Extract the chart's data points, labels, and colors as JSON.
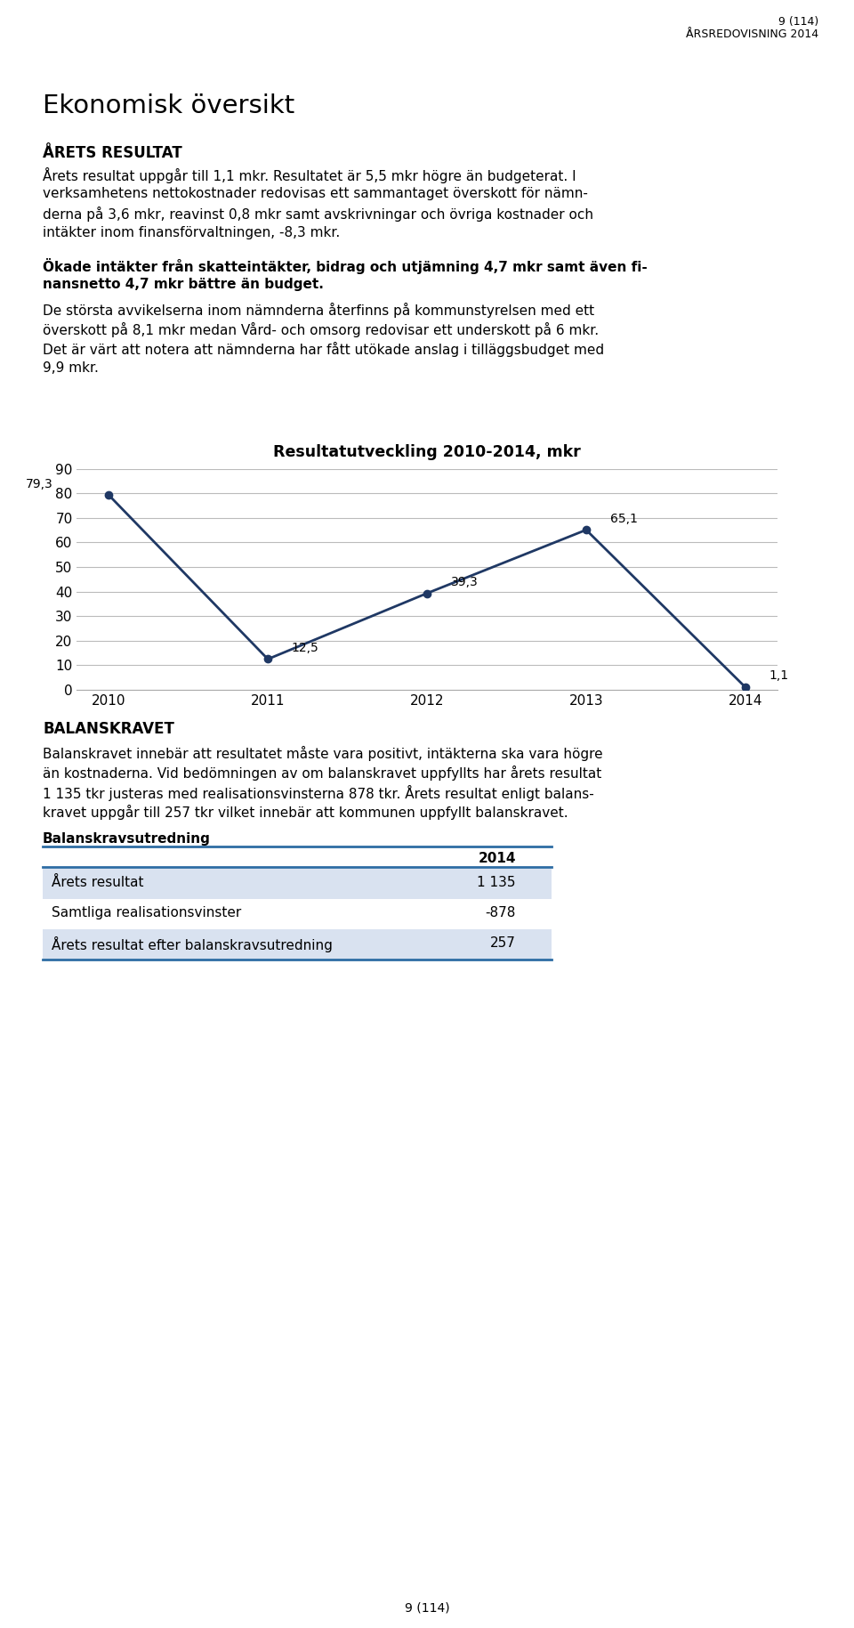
{
  "page_header_line1": "9 (114)",
  "page_header_line2": "ÅRSREDOVISNING 2014",
  "section_title": "Ekonomisk översikt",
  "subsection1_title": "ÅRETS RESULTAT",
  "para1_lines": [
    "Årets resultat uppgår till 1,1 mkr. Resultatet är 5,5 mkr högre än budgeterat. I",
    "verksamhetens nettokostnader redovisas ett sammantaget överskott för nämn-",
    "derna på 3,6 mkr, reavinst 0,8 mkr samt avskrivningar och övriga kostnader och",
    "intäkter inom finansförvaltningen, -8,3 mkr."
  ],
  "para2_lines": [
    "Ökade intäkter från skatteintäkter, bidrag och utjämning 4,7 mkr samt även fi-",
    "nansnetto 4,7 mkr bättre än budget."
  ],
  "para3_lines": [
    "De största avvikelserna inom nämnderna återfinns på kommunstyrelsen med ett",
    "överskott på 8,1 mkr medan Vård- och omsorg redovisar ett underskott på 6 mkr.",
    "Det är värt att notera att nämnderna har fått utökade anslag i tilläggsbudget med",
    "9,9 mkr."
  ],
  "chart_title": "Resultatutveckling 2010-2014, mkr",
  "chart_years": [
    2010,
    2011,
    2012,
    2013,
    2014
  ],
  "chart_values": [
    79.3,
    12.5,
    39.3,
    65.1,
    1.1
  ],
  "chart_ylim": [
    0,
    90
  ],
  "chart_yticks": [
    0,
    10,
    20,
    30,
    40,
    50,
    60,
    70,
    80,
    90
  ],
  "chart_line_color": "#1F3864",
  "chart_marker_color": "#1F3864",
  "chart_grid_color": "#BBBBBB",
  "data_labels": [
    "79,3",
    "12,5",
    "39,3",
    "65,1",
    "1,1"
  ],
  "subsection2_title": "BALANSKRAVET",
  "para4_lines": [
    "Balanskravet innebär att resultatet måste vara positivt, intäkterna ska vara högre",
    "än kostnaderna. Vid bedömningen av om balanskravet uppfyllts har årets resultat",
    "1 135 tkr justeras med realisationsvinsterna 878 tkr. Årets resultat enligt balans-",
    "kravet uppgår till 257 tkr vilket innebär att kommunen uppfyllt balanskravet."
  ],
  "table_title": "Balanskravsutredning",
  "table_header": "2014",
  "table_rows": [
    [
      "Årets resultat",
      "1 135"
    ],
    [
      "Samtliga realisationsvinster",
      "-878"
    ],
    [
      "Årets resultat efter balanskravsutredning",
      "257"
    ]
  ],
  "table_line_color": "#2E6DA4",
  "table_row_bg_colors": [
    "#D9E2F0",
    "#FFFFFF",
    "#D9E2F0"
  ],
  "page_footer": "9 (114)",
  "bg_color": "#FFFFFF",
  "text_color": "#000000"
}
